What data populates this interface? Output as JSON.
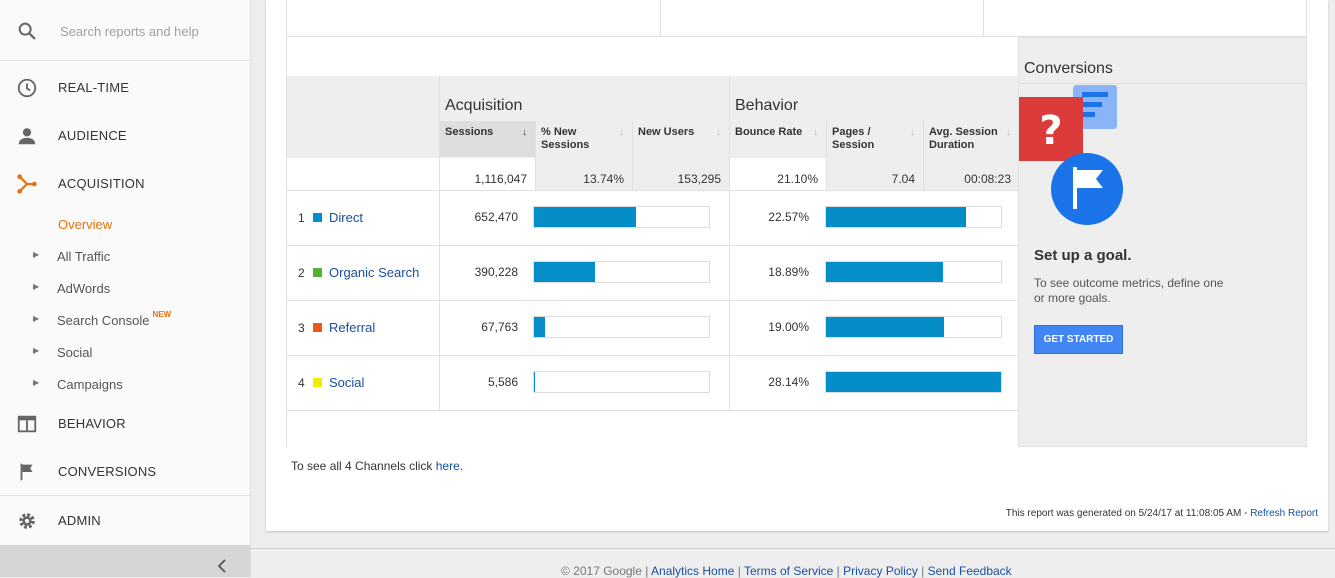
{
  "search": {
    "placeholder": "Search reports and help"
  },
  "nav": {
    "realtime": "REAL-TIME",
    "audience": "AUDIENCE",
    "acquisition": "ACQUISITION",
    "behavior": "BEHAVIOR",
    "conversions": "CONVERSIONS",
    "admin": "ADMIN"
  },
  "acquisition_sub": {
    "overview": "Overview",
    "items": [
      "All Traffic",
      "AdWords",
      "Search Console",
      "Social",
      "Campaigns"
    ],
    "new_badge": "NEW"
  },
  "table": {
    "groups": {
      "acquisition": "Acquisition",
      "behavior": "Behavior"
    },
    "columns": {
      "sessions": "Sessions",
      "pct_new": "% New Sessions",
      "new_users": "New Users",
      "bounce": "Bounce Rate",
      "pages": "Pages / Session",
      "duration": "Avg. Session Duration"
    },
    "sort_glyph": "↓",
    "totals": {
      "sessions": "1,116,047",
      "pct_new": "13.74%",
      "new_users": "153,295",
      "bounce": "21.10%",
      "pages": "7.04",
      "duration": "00:08:23"
    },
    "rows": [
      {
        "rank": "1",
        "channel": "Direct",
        "color": "#058dc7",
        "sessions": "652,470",
        "bounce": "22.57%",
        "sessions_share": 0.5846,
        "bounce_share": 0.8021
      },
      {
        "rank": "2",
        "channel": "Organic Search",
        "color": "#50b432",
        "sessions": "390,228",
        "bounce": "18.89%",
        "sessions_share": 0.3496,
        "bounce_share": 0.6713
      },
      {
        "rank": "3",
        "channel": "Referral",
        "color": "#ed561b",
        "sessions": "67,763",
        "bounce": "19.00%",
        "sessions_share": 0.0607,
        "bounce_share": 0.6752
      },
      {
        "rank": "4",
        "channel": "Social",
        "color": "#edef00",
        "sessions": "5,586",
        "bounce": "28.14%",
        "sessions_share": 0.005,
        "bounce_share": 1.0
      }
    ]
  },
  "conversions": {
    "title": "Conversions",
    "goal_title": "Set up a goal.",
    "goal_desc": "To see outcome metrics, define one or more goals.",
    "button": "GET STARTED"
  },
  "see_all": {
    "prefix": "To see all 4 Channels click ",
    "link": "here",
    "suffix": "."
  },
  "generated": {
    "text": "This report was generated on 5/24/17 at 11:08:05 AM - ",
    "link": "Refresh Report"
  },
  "footer": {
    "copyright": "© 2017 Google",
    "links": [
      "Analytics Home",
      "Terms of Service",
      "Privacy Policy",
      "Send Feedback"
    ],
    "separator": " | "
  }
}
